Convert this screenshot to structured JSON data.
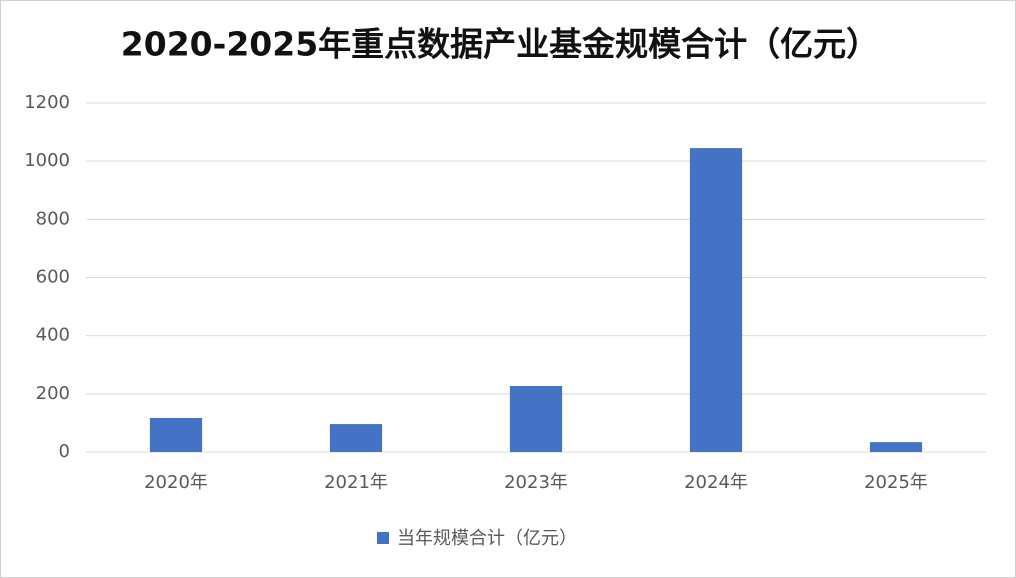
{
  "chart_data": {
    "type": "bar",
    "title": "2020-2025年重点数据产业基金规模合计（亿元）",
    "categories": [
      "2020年",
      "2021年",
      "2023年",
      "2024年",
      "2025年"
    ],
    "series": [
      {
        "name": "当年规模合计（亿元）",
        "color": "#4472c4",
        "values": [
          117,
          96,
          227,
          1045,
          34
        ]
      }
    ],
    "ylim": [
      0,
      1200
    ],
    "yticks": [
      0,
      200,
      400,
      600,
      800,
      1000,
      1200
    ],
    "grid": true,
    "legend": "bottom"
  }
}
